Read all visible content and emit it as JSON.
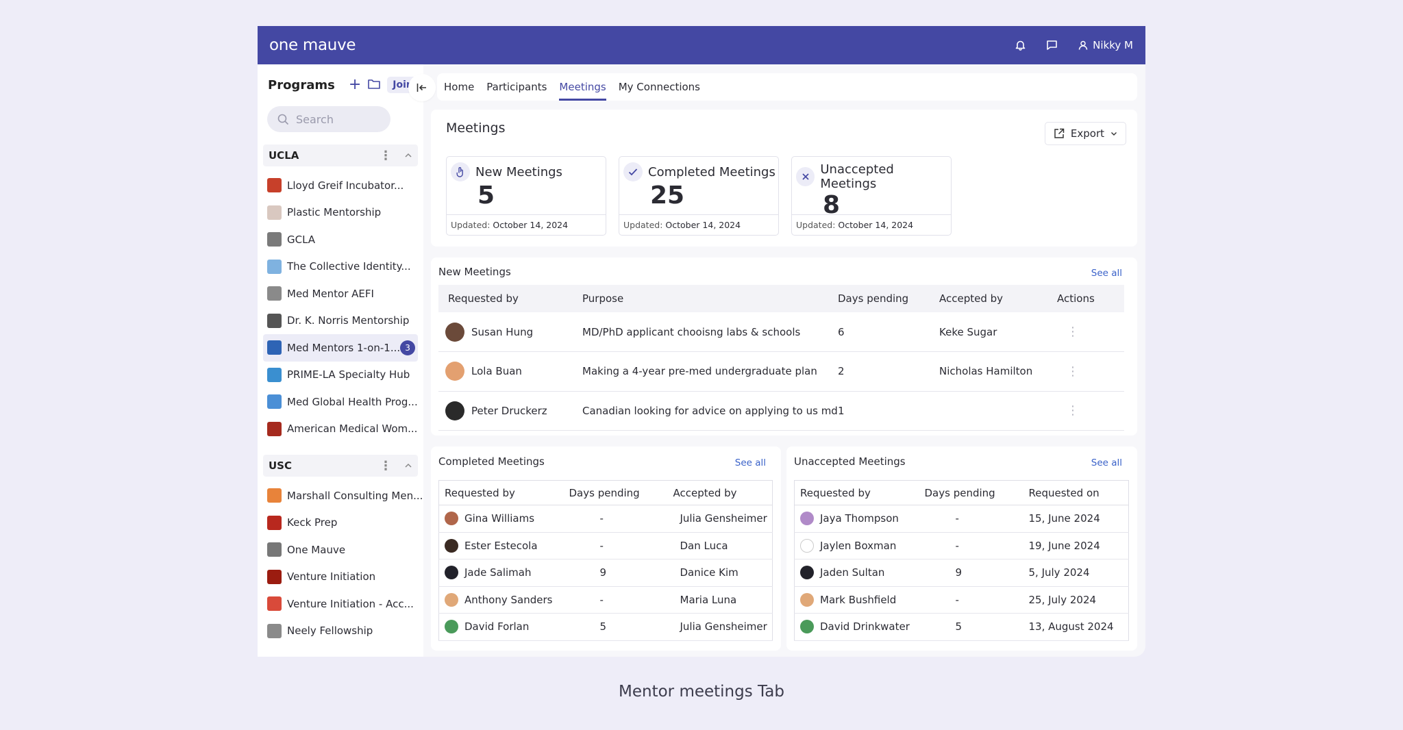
{
  "app": {
    "logo": "one mauve",
    "user": "Nikky M"
  },
  "sidebar": {
    "title": "Programs",
    "join_label": "Join",
    "search_placeholder": "Search",
    "groups": [
      {
        "name": "UCLA",
        "items": [
          {
            "label": "Lloyd Greif Incubator...",
            "color": "#c7402a"
          },
          {
            "label": "Plastic Mentorship",
            "color": "#d9c8c0"
          },
          {
            "label": "GCLA",
            "color": "#7a7a7a"
          },
          {
            "label": "The Collective Identity...",
            "color": "#7fb2e0"
          },
          {
            "label": "Med Mentor AEFI",
            "color": "#8a8a8a"
          },
          {
            "label": "Dr. K. Norris Mentorship",
            "color": "#555555"
          },
          {
            "label": "Med Mentors 1-on-1...",
            "color": "#2e64b5",
            "badge": "3"
          },
          {
            "label": "PRIME-LA Specialty Hub",
            "color": "#3a8fd0"
          },
          {
            "label": "Med Global Health Prog...",
            "color": "#4b8fd6"
          },
          {
            "label": "American Medical Wom...",
            "color": "#a52a1e"
          }
        ]
      },
      {
        "name": "USC",
        "items": [
          {
            "label": "Marshall Consulting Men...",
            "color": "#e8833a"
          },
          {
            "label": "Keck Prep",
            "color": "#b8281e"
          },
          {
            "label": "One Mauve",
            "color": "#777777"
          },
          {
            "label": "Venture Initiation",
            "color": "#9b1c10"
          },
          {
            "label": "Venture Initiation - Acc...",
            "color": "#d94a3a"
          },
          {
            "label": "Neely Fellowship",
            "color": "#8a8a8a"
          }
        ]
      }
    ]
  },
  "tabs": [
    "Home",
    "Participants",
    "Meetings",
    "My Connections"
  ],
  "meetings": {
    "title": "Meetings",
    "export_label": "Export",
    "stats": [
      {
        "label": "New Meetings",
        "value": "5",
        "updated_label": "Updated:",
        "updated": "October 14, 2024"
      },
      {
        "label": "Completed Meetings",
        "value": "25",
        "updated_label": "Updated:",
        "updated": "October 14, 2024"
      },
      {
        "label": "Unaccepted Meetings",
        "value": "8",
        "updated_label": "Updated:",
        "updated": "October 14, 2024"
      }
    ]
  },
  "new_meetings": {
    "title": "New Meetings",
    "see_all": "See all",
    "columns": [
      "Requested by",
      "Purpose",
      "Days pending",
      "Accepted by",
      "Actions"
    ],
    "rows": [
      {
        "requested_by": "Susan Hung",
        "purpose": "MD/PhD applicant chooisng labs & schools",
        "days": "6",
        "accepted_by": "Keke Sugar",
        "avatar": "#6b4a3a"
      },
      {
        "requested_by": "Lola Buan",
        "purpose": "Making a 4-year pre-med undergraduate plan",
        "days": "2",
        "accepted_by": "Nicholas Hamilton",
        "avatar": "#e3a070"
      },
      {
        "requested_by": "Peter Druckerz",
        "purpose": "Canadian looking for advice on applying to us md",
        "days": "1",
        "accepted_by": "",
        "avatar": "#2a2a2a"
      }
    ]
  },
  "completed_meetings": {
    "title": "Completed Meetings",
    "see_all": "See all",
    "columns": [
      "Requested by",
      "Days pending",
      "Accepted by"
    ],
    "rows": [
      {
        "requested_by": "Gina Williams",
        "days": "-",
        "accepted_by": "Julia Gensheimer",
        "avatar": "#b0664a"
      },
      {
        "requested_by": "Ester Estecola",
        "days": "-",
        "accepted_by": "Dan Luca",
        "avatar": "#3a2a22"
      },
      {
        "requested_by": "Jade Salimah",
        "days": "9",
        "accepted_by": "Danice Kim",
        "avatar": "#22222a"
      },
      {
        "requested_by": "Anthony Sanders",
        "days": "-",
        "accepted_by": "Maria Luna",
        "avatar": "#e0a878"
      },
      {
        "requested_by": "David Forlan",
        "days": "5",
        "accepted_by": "Julia Gensheimer",
        "avatar": "#4a9a5a"
      }
    ]
  },
  "unaccepted_meetings": {
    "title": "Unaccepted Meetings",
    "see_all": "See all",
    "columns": [
      "Requested by",
      "Days pending",
      "Requested on"
    ],
    "rows": [
      {
        "requested_by": "Jaya Thompson",
        "days": "-",
        "requested_on": "15, June 2024",
        "avatar": "#b08ac8"
      },
      {
        "requested_by": "Jaylen Boxman",
        "days": "-",
        "requested_on": "19, June 2024",
        "avatar": "#ffffff"
      },
      {
        "requested_by": "Jaden Sultan",
        "days": "9",
        "requested_on": "5, July 2024",
        "avatar": "#22222a"
      },
      {
        "requested_by": "Mark Bushfield",
        "days": "-",
        "requested_on": "25, July 2024",
        "avatar": "#e0a878"
      },
      {
        "requested_by": "David Drinkwater",
        "days": "5",
        "requested_on": "13, August 2024",
        "avatar": "#4a9a5a"
      }
    ]
  },
  "caption": "Mentor meetings Tab"
}
